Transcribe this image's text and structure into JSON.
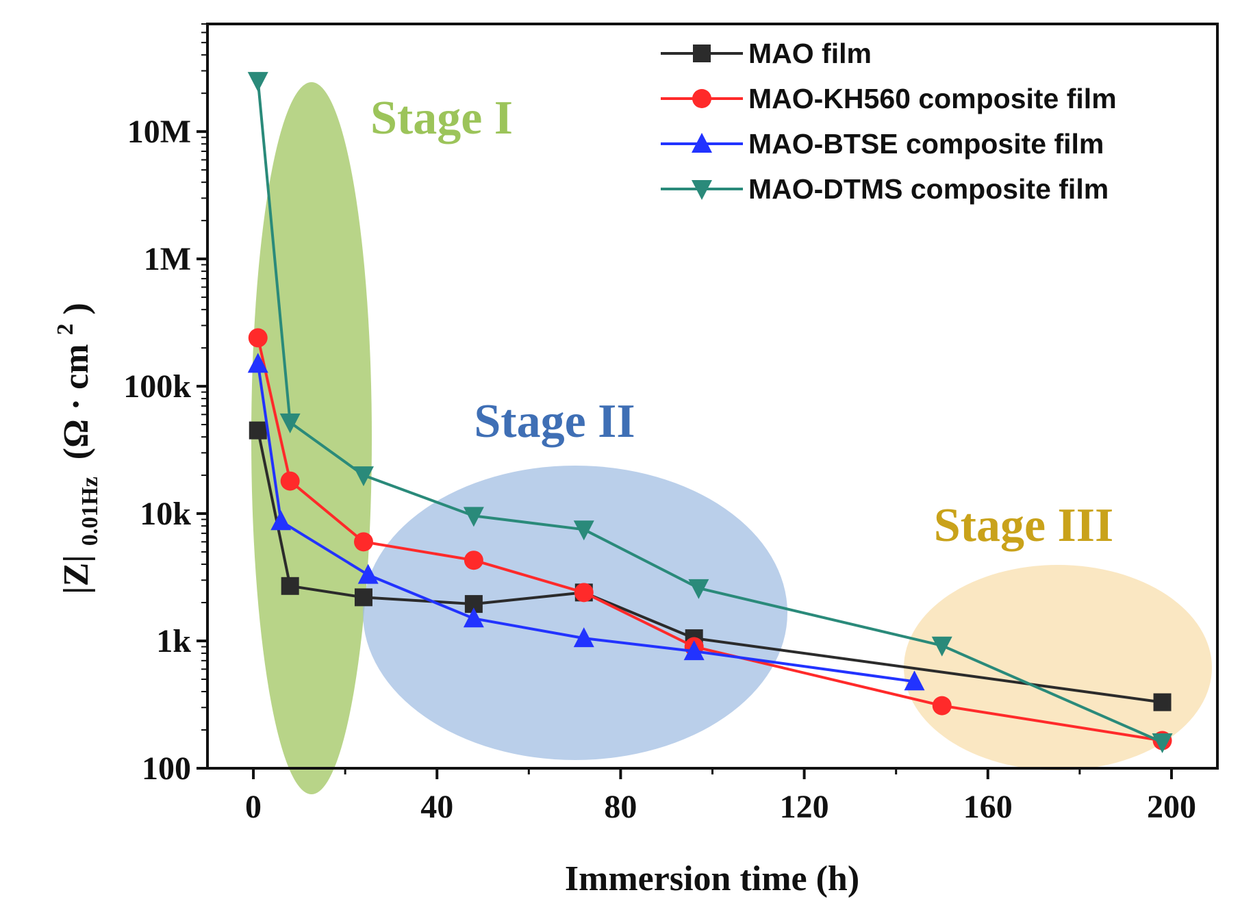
{
  "chart_data": {
    "type": "line",
    "title": "",
    "xlabel": "Immersion time (h)",
    "ylabel": {
      "main": "|Z|",
      "subscript": "0.01Hz",
      "unit_open": "(Ω · cm",
      "unit_sup": "2",
      "unit_close": ")"
    },
    "yscale": "log",
    "xlim": [
      -10,
      210
    ],
    "ylim": [
      100,
      70000000
    ],
    "x_ticks": [
      {
        "value": 0,
        "label": "0"
      },
      {
        "value": 40,
        "label": "40"
      },
      {
        "value": 80,
        "label": "80"
      },
      {
        "value": 120,
        "label": "120"
      },
      {
        "value": 160,
        "label": "160"
      },
      {
        "value": 200,
        "label": "200"
      }
    ],
    "y_ticks": [
      {
        "value": 100,
        "label": "100"
      },
      {
        "value": 1000,
        "label": "1k"
      },
      {
        "value": 10000,
        "label": "10k"
      },
      {
        "value": 100000,
        "label": "100k"
      },
      {
        "value": 1000000,
        "label": "1M"
      },
      {
        "value": 10000000,
        "label": "10M"
      }
    ],
    "legend_position": "top-right",
    "series": [
      {
        "name": "MAO film",
        "color": "#2b2b2b",
        "marker": "square",
        "x": [
          1,
          8,
          24,
          48,
          72,
          96,
          198
        ],
        "y": [
          45000,
          2700,
          2200,
          1950,
          2400,
          1050,
          330
        ]
      },
      {
        "name": "MAO-KH560 composite film",
        "color": "#ff2a2a",
        "marker": "circle",
        "x": [
          1,
          8,
          24,
          48,
          72,
          96,
          150,
          198
        ],
        "y": [
          240000,
          18000,
          6000,
          4300,
          2400,
          900,
          310,
          165
        ]
      },
      {
        "name": "MAO-BTSE composite film",
        "color": "#2233ff",
        "marker": "triangle-up",
        "x": [
          1,
          6,
          25,
          48,
          72,
          96,
          144
        ],
        "y": [
          150000,
          8700,
          3300,
          1500,
          1050,
          830,
          480
        ]
      },
      {
        "name": "MAO-DTMS composite film",
        "color": "#2a8a7a",
        "marker": "triangle-down",
        "x": [
          1,
          8,
          24,
          48,
          72,
          97,
          150,
          198
        ],
        "y": [
          25000000,
          52000,
          20000,
          9600,
          7500,
          2600,
          920,
          160
        ]
      }
    ],
    "regions": [
      {
        "label": "Stage I",
        "color": "#9cc45a",
        "label_color": "#9cc45a",
        "x_range": [
          0,
          25
        ]
      },
      {
        "label": "Stage II",
        "color": "#9fbde2",
        "label_color": "#3f6fb5",
        "x_range": [
          24,
          120
        ]
      },
      {
        "label": "Stage III",
        "color": "#f8deab",
        "label_color": "#c9a21a",
        "x_range": [
          130,
          210
        ]
      }
    ]
  }
}
